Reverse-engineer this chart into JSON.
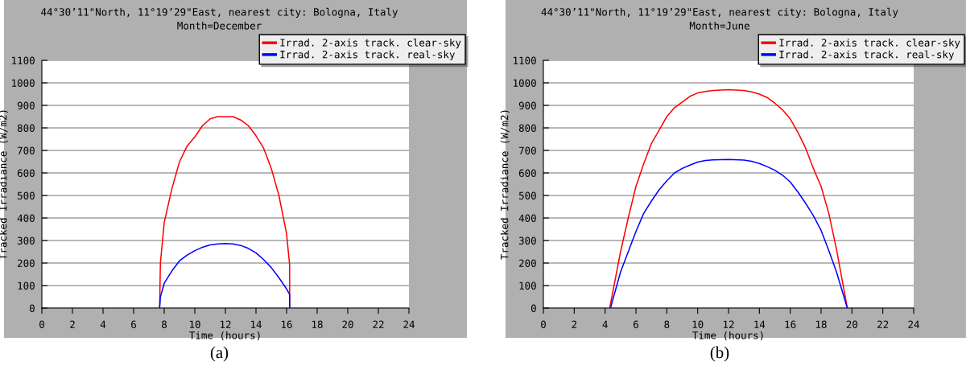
{
  "chart_data": [
    {
      "type": "line",
      "title": "44°30’11\"North, 11°19’29\"East, nearest city: Bologna, Italy",
      "subtitle": "Month=December",
      "xlabel": "Time (hours)",
      "ylabel": "Tracked Irradiance (W/m2)",
      "annotations": [
        "(a)"
      ],
      "xlim": [
        0,
        24
      ],
      "xticks": [
        0,
        2,
        4,
        6,
        8,
        10,
        12,
        14,
        16,
        18,
        20,
        22,
        24
      ],
      "ylim": [
        0,
        1100
      ],
      "yticks": [
        0,
        100,
        200,
        300,
        400,
        500,
        600,
        700,
        800,
        900,
        1000,
        1100
      ],
      "grid": "y",
      "legend": "top right",
      "marker": "none",
      "line_style": "solid",
      "series": [
        {
          "name": "Irrad. 2-axis track. clear-sky",
          "color": "#ff0000",
          "x": [
            7.7,
            7.75,
            8,
            8.5,
            9,
            9.5,
            10,
            10.5,
            11,
            11.5,
            12,
            12.5,
            13,
            13.5,
            14,
            14.5,
            15,
            15.5,
            16,
            16.2,
            16.2
          ],
          "values": [
            0,
            200,
            380,
            530,
            650,
            720,
            760,
            810,
            840,
            850,
            850,
            850,
            835,
            810,
            765,
            710,
            620,
            500,
            330,
            190,
            0
          ]
        },
        {
          "name": "Irrad. 2-axis track. real-sky",
          "color": "#0000ff",
          "x": [
            7.7,
            7.75,
            8,
            8.5,
            9,
            9.5,
            10,
            10.5,
            11,
            11.5,
            12,
            12.5,
            13,
            13.5,
            14,
            14.5,
            15,
            15.5,
            16,
            16.2,
            16.2
          ],
          "values": [
            0,
            50,
            110,
            165,
            210,
            235,
            255,
            270,
            280,
            285,
            287,
            285,
            278,
            265,
            245,
            215,
            180,
            135,
            85,
            60,
            0
          ]
        }
      ]
    },
    {
      "type": "line",
      "title": "44°30’11\"North, 11°19’29\"East, nearest city: Bologna, Italy",
      "subtitle": "Month=June",
      "xlabel": "Time (hours)",
      "ylabel": "Tracked Irradiance (W/m2)",
      "annotations": [
        "(b)"
      ],
      "xlim": [
        0,
        24
      ],
      "xticks": [
        0,
        2,
        4,
        6,
        8,
        10,
        12,
        14,
        16,
        18,
        20,
        22,
        24
      ],
      "ylim": [
        0,
        1100
      ],
      "yticks": [
        0,
        100,
        200,
        300,
        400,
        500,
        600,
        700,
        800,
        900,
        1000,
        1100
      ],
      "grid": "y",
      "legend": "top right",
      "marker": "none",
      "line_style": "solid",
      "series": [
        {
          "name": "Irrad. 2-axis track. clear-sky",
          "color": "#ff0000",
          "x": [
            4.3,
            5,
            5.5,
            6,
            6.5,
            7,
            7.5,
            8,
            8.5,
            9,
            9.5,
            10,
            10.5,
            11,
            12,
            13,
            13.5,
            14,
            14.5,
            15,
            15.5,
            16,
            16.5,
            17,
            17.5,
            18,
            18.5,
            19,
            19.7
          ],
          "values": [
            0,
            250,
            400,
            540,
            640,
            730,
            790,
            850,
            890,
            915,
            940,
            955,
            962,
            966,
            970,
            966,
            960,
            950,
            935,
            910,
            880,
            840,
            780,
            710,
            620,
            540,
            420,
            260,
            0
          ]
        },
        {
          "name": "Irrad. 2-axis track. real-sky",
          "color": "#0000ff",
          "x": [
            4.35,
            5,
            5.5,
            6,
            6.5,
            7,
            7.5,
            8,
            8.5,
            9,
            9.5,
            10,
            10.5,
            11,
            12,
            13,
            13.5,
            14,
            14.5,
            15,
            15.5,
            16,
            16.5,
            17,
            17.5,
            18,
            18.5,
            19,
            19.7
          ],
          "values": [
            0,
            160,
            250,
            340,
            420,
            475,
            525,
            565,
            600,
            620,
            635,
            648,
            655,
            658,
            660,
            657,
            652,
            642,
            628,
            612,
            590,
            560,
            515,
            465,
            410,
            345,
            255,
            160,
            0
          ]
        }
      ]
    }
  ]
}
